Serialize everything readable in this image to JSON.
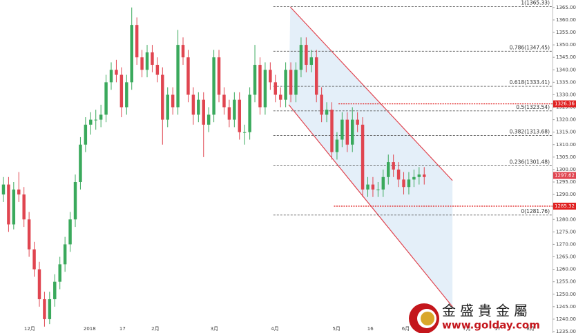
{
  "chart_data": {
    "type": "candlestick",
    "x": [
      0,
      1,
      2,
      3,
      4,
      5,
      6,
      7,
      8,
      9,
      10,
      11,
      12,
      13,
      14,
      15,
      16,
      17,
      18,
      19,
      20,
      21,
      22,
      23,
      24,
      25,
      26,
      27,
      28,
      29,
      30,
      31,
      32,
      33,
      34,
      35,
      36,
      37,
      38,
      39,
      40,
      41,
      42,
      43,
      44,
      45,
      46,
      47,
      48,
      49,
      50,
      51,
      52,
      53,
      54,
      55,
      56,
      57,
      58,
      59,
      60,
      61,
      62,
      63,
      64,
      65,
      66,
      67,
      68,
      69,
      70,
      71,
      72,
      73,
      74,
      75,
      76,
      77,
      78,
      79,
      80,
      81,
      82
    ],
    "ohlc": [
      [
        1290,
        1297,
        1287,
        1294
      ],
      [
        1294,
        1297,
        1275,
        1278
      ],
      [
        1278,
        1295,
        1276,
        1292
      ],
      [
        1292,
        1299,
        1287,
        1290
      ],
      [
        1290,
        1293,
        1277,
        1280
      ],
      [
        1280,
        1283,
        1265,
        1268
      ],
      [
        1268,
        1271,
        1257,
        1260
      ],
      [
        1260,
        1263,
        1245,
        1248
      ],
      [
        1248,
        1251,
        1237,
        1240
      ],
      [
        1240,
        1251,
        1238,
        1248
      ],
      [
        1248,
        1258,
        1245,
        1255
      ],
      [
        1255,
        1265,
        1252,
        1262
      ],
      [
        1262,
        1273,
        1259,
        1270
      ],
      [
        1270,
        1283,
        1267,
        1280
      ],
      [
        1280,
        1298,
        1277,
        1295
      ],
      [
        1295,
        1313,
        1292,
        1310
      ],
      [
        1310,
        1321,
        1307,
        1318
      ],
      [
        1318,
        1323,
        1314,
        1320
      ],
      [
        1320,
        1324,
        1316,
        1320
      ],
      [
        1320,
        1326,
        1317,
        1322
      ],
      [
        1322,
        1338,
        1319,
        1335
      ],
      [
        1335,
        1343,
        1332,
        1340
      ],
      [
        1340,
        1344,
        1335,
        1338
      ],
      [
        1338,
        1341,
        1321,
        1325
      ],
      [
        1325,
        1338,
        1322,
        1335
      ],
      [
        1335,
        1365,
        1332,
        1358
      ],
      [
        1358,
        1361,
        1342,
        1345
      ],
      [
        1345,
        1348,
        1337,
        1340
      ],
      [
        1340,
        1350,
        1337,
        1347
      ],
      [
        1347,
        1350,
        1339,
        1342
      ],
      [
        1342,
        1345,
        1335,
        1338
      ],
      [
        1338,
        1341,
        1310,
        1320
      ],
      [
        1320,
        1333,
        1317,
        1330
      ],
      [
        1330,
        1333,
        1322,
        1325
      ],
      [
        1325,
        1356,
        1322,
        1350
      ],
      [
        1350,
        1353,
        1342,
        1345
      ],
      [
        1345,
        1348,
        1327,
        1330
      ],
      [
        1330,
        1333,
        1318,
        1322
      ],
      [
        1322,
        1331,
        1319,
        1328
      ],
      [
        1328,
        1331,
        1305,
        1318
      ],
      [
        1318,
        1325,
        1315,
        1322
      ],
      [
        1322,
        1348,
        1319,
        1345
      ],
      [
        1345,
        1348,
        1327,
        1330
      ],
      [
        1330,
        1333,
        1322,
        1325
      ],
      [
        1325,
        1328,
        1317,
        1320
      ],
      [
        1320,
        1331,
        1317,
        1328
      ],
      [
        1328,
        1331,
        1312,
        1315
      ],
      [
        1315,
        1318,
        1310,
        1315
      ],
      [
        1315,
        1333,
        1312,
        1330
      ],
      [
        1330,
        1350,
        1327,
        1342
      ],
      [
        1342,
        1345,
        1322,
        1325
      ],
      [
        1325,
        1343,
        1322,
        1340
      ],
      [
        1340,
        1343,
        1332,
        1335
      ],
      [
        1335,
        1338,
        1327,
        1330
      ],
      [
        1330,
        1333,
        1325,
        1328
      ],
      [
        1328,
        1343,
        1325,
        1340
      ],
      [
        1340,
        1343,
        1327,
        1330
      ],
      [
        1330,
        1343,
        1327,
        1340
      ],
      [
        1340,
        1353,
        1337,
        1350
      ],
      [
        1350,
        1353,
        1339,
        1342
      ],
      [
        1342,
        1348,
        1339,
        1345
      ],
      [
        1345,
        1348,
        1327,
        1330
      ],
      [
        1330,
        1333,
        1319,
        1322
      ],
      [
        1322,
        1327,
        1319,
        1324
      ],
      [
        1324,
        1327,
        1304,
        1307
      ],
      [
        1307,
        1315,
        1304,
        1312
      ],
      [
        1312,
        1323,
        1309,
        1320
      ],
      [
        1320,
        1323,
        1307,
        1310
      ],
      [
        1310,
        1325,
        1307,
        1320
      ],
      [
        1320,
        1323,
        1315,
        1318
      ],
      [
        1318,
        1321,
        1289,
        1292
      ],
      [
        1292,
        1297,
        1289,
        1294
      ],
      [
        1294,
        1297,
        1289,
        1292
      ],
      [
        1292,
        1295,
        1289,
        1292
      ],
      [
        1292,
        1300,
        1289,
        1297
      ],
      [
        1297,
        1306,
        1294,
        1303
      ],
      [
        1303,
        1306,
        1297,
        1300
      ],
      [
        1300,
        1303,
        1293,
        1296
      ],
      [
        1296,
        1299,
        1290,
        1293
      ],
      [
        1293,
        1299,
        1290,
        1296
      ],
      [
        1296,
        1300,
        1293,
        1297
      ],
      [
        1297,
        1301,
        1294,
        1298
      ],
      [
        1298,
        1301,
        1294,
        1297
      ]
    ],
    "up_color": "#3aa95c",
    "down_color": "#e04550",
    "xlim": [
      -0.67,
      107
    ],
    "xticks": [
      {
        "value": 5.1,
        "label": "12月"
      },
      {
        "value": 16.8,
        "label": "2018"
      },
      {
        "value": 23.2,
        "label": "17"
      },
      {
        "value": 29.6,
        "label": "2月"
      },
      {
        "value": 41.1,
        "label": "3月"
      },
      {
        "value": 52.9,
        "label": "4月"
      },
      {
        "value": 64.9,
        "label": "5月"
      },
      {
        "value": 71.5,
        "label": "16"
      },
      {
        "value": 78.4,
        "label": "6月"
      },
      {
        "value": 90.3,
        "label": "7月"
      },
      {
        "value": 96.3,
        "label": "17"
      },
      {
        "value": 102.7,
        "label": "8月"
      }
    ],
    "ylim": [
      1235,
      1368
    ],
    "yticks": [
      {
        "value": 1235,
        "label": "1235.00"
      },
      {
        "value": 1240,
        "label": "1240.00"
      },
      {
        "value": 1245,
        "label": "1245.00"
      },
      {
        "value": 1250,
        "label": "1250.00"
      },
      {
        "value": 1255,
        "label": "1255.00"
      },
      {
        "value": 1260,
        "label": "1260.00"
      },
      {
        "value": 1265,
        "label": "1265.00"
      },
      {
        "value": 1270,
        "label": "1270.00"
      },
      {
        "value": 1275,
        "label": "1275.00"
      },
      {
        "value": 1280,
        "label": "1280.00"
      },
      {
        "value": 1285,
        "label": "1285.00"
      },
      {
        "value": 1290,
        "label": "1290.00"
      },
      {
        "value": 1295,
        "label": "1295.00"
      },
      {
        "value": 1300,
        "label": "1300.00"
      },
      {
        "value": 1305,
        "label": "1305.00"
      },
      {
        "value": 1310,
        "label": "1310.00"
      },
      {
        "value": 1315,
        "label": "1315.00"
      },
      {
        "value": 1320,
        "label": "1320.00"
      },
      {
        "value": 1325,
        "label": "1325.00"
      },
      {
        "value": 1330,
        "label": "1330.00"
      },
      {
        "value": 1335,
        "label": "1335.00"
      },
      {
        "value": 1340,
        "label": "1340.00"
      },
      {
        "value": 1345,
        "label": "1345.00"
      },
      {
        "value": 1350,
        "label": "1350.00"
      },
      {
        "value": 1355,
        "label": "1355.00"
      },
      {
        "value": 1360,
        "label": "1360.00"
      },
      {
        "value": 1365,
        "label": "1365.00"
      }
    ],
    "fib_start_x": 52.6,
    "fib_levels": [
      {
        "value": 1365.33,
        "label": "1(1365.33)"
      },
      {
        "value": 1347.45,
        "label": "0.786(1347.45)"
      },
      {
        "value": 1333.41,
        "label": "0.618(1333.41)"
      },
      {
        "value": 1323.54,
        "label": "0.5(1323.54)"
      },
      {
        "value": 1313.68,
        "label": "0.382(1313.68)"
      },
      {
        "value": 1301.48,
        "label": "0.236(1301.48)"
      },
      {
        "value": 1281.76,
        "label": "0(1281.76)"
      }
    ],
    "price_lines": [
      {
        "value": 1326.36,
        "label": "1326.36",
        "start_x": 65.3
      },
      {
        "value": 1285.32,
        "label": "1285.32",
        "start_x": 64.4
      }
    ],
    "current_price": {
      "value": 1297.62,
      "label": "1297.62"
    },
    "channel": {
      "upper": [
        [
          55.9,
          1365.2
        ],
        [
          87.5,
          1295.6
        ]
      ],
      "lower": [
        [
          55.6,
          1326.0
        ],
        [
          87.5,
          1245.0
        ]
      ]
    },
    "watermark": {
      "name": "金盛貴金屬",
      "url": "www.golday.com"
    }
  }
}
